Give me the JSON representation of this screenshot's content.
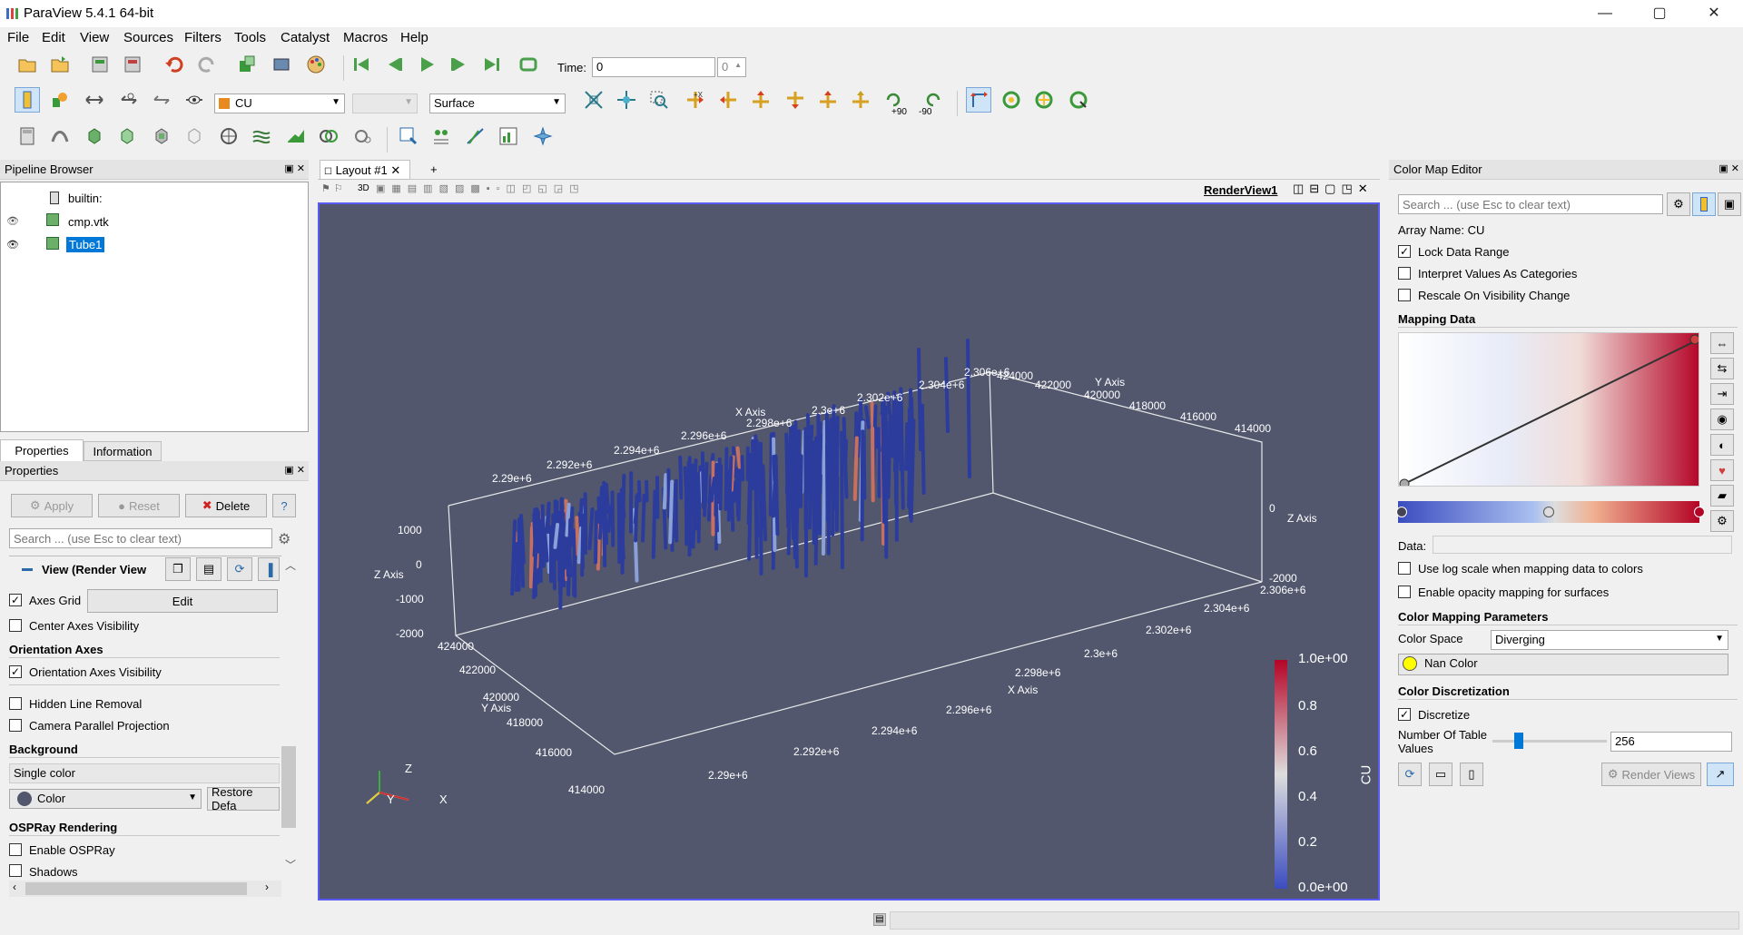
{
  "window": {
    "title": "ParaView 5.4.1 64-bit",
    "minimize": "—",
    "maximize": "▢",
    "close": "✕"
  },
  "menu": [
    "File",
    "Edit",
    "View",
    "Sources",
    "Filters",
    "Tools",
    "Catalyst",
    "Macros",
    "Help"
  ],
  "time": {
    "label": "Time:",
    "value": "0",
    "index": "0"
  },
  "toolbar2": {
    "array": "CU",
    "component": "",
    "representation": "Surface",
    "camera_labels": [
      "+X",
      "-X",
      "+Y",
      "-Y",
      "+Z",
      "-Z",
      "+90",
      "-90"
    ]
  },
  "pipeline": {
    "title": "Pipeline Browser",
    "items": [
      {
        "label": "builtin:"
      },
      {
        "label": "cmp.vtk"
      },
      {
        "label": "Tube1"
      }
    ]
  },
  "tabs": {
    "properties": "Properties",
    "information": "Information"
  },
  "properties": {
    "title": "Properties",
    "apply": "Apply",
    "reset": "Reset",
    "delete": "Delete",
    "help": "?",
    "search_placeholder": "Search ... (use Esc to clear text)",
    "view_section": "View (Render View",
    "axes_grid": "Axes Grid",
    "edit": "Edit",
    "center_axes": "Center Axes Visibility",
    "orientation_header": "Orientation Axes",
    "orientation_visibility": "Orientation Axes Visibility",
    "hidden_line": "Hidden Line Removal",
    "camera_parallel": "Camera Parallel Projection",
    "background_header": "Background",
    "background_mode": "Single color",
    "color": "Color",
    "restore": "Restore Defa",
    "ospray_header": "OSPRay Rendering",
    "enable_ospray": "Enable OSPRay",
    "shadows": "Shadows"
  },
  "layout": {
    "tab": "Layout #1",
    "add": "+",
    "view_name": "RenderView1",
    "mode_3d": "3D"
  },
  "axes": {
    "x_top": [
      "X Axis",
      "2.29e+6",
      "2.292e+6",
      "2.294e+6",
      "2.296e+6",
      "2.298e+6",
      "2.3e+6",
      "2.302e+6",
      "2.304e+6",
      "2.306e+6"
    ],
    "y_top": [
      "Y Axis",
      "424000",
      "422000",
      "420000",
      "418000",
      "416000",
      "414000"
    ],
    "z_left": [
      "Z Axis",
      "1000",
      "0",
      "-1000",
      "-2000"
    ],
    "z_right": [
      "Z Axis",
      "0",
      "-2000"
    ],
    "x_bottom": [
      "X Axis",
      "2.29e+6",
      "2.292e+6",
      "2.294e+6",
      "2.296e+6",
      "2.298e+6",
      "2.3e+6",
      "2.302e+6",
      "2.304e+6",
      "2.306e+6"
    ],
    "y_left": [
      "Y Axis",
      "424000",
      "422000",
      "420000",
      "418000",
      "416000",
      "414000"
    ],
    "orient": [
      "Z",
      "Y",
      "X"
    ]
  },
  "colorbar": {
    "title": "CU",
    "ticks": [
      "1.0e+00",
      "0.8",
      "0.6",
      "0.4",
      "0.2",
      "0.0e+00"
    ],
    "low": "#3b4cc0",
    "mid": "#dddddd",
    "high": "#b40426"
  },
  "cme": {
    "title": "Color Map Editor",
    "search_placeholder": "Search ... (use Esc to clear text)",
    "array_name": "Array Name: CU",
    "lock_range": "Lock Data Range",
    "interpret": "Interpret Values As Categories",
    "rescale": "Rescale On Visibility Change",
    "mapping_header": "Mapping Data",
    "data_label": "Data:",
    "log_scale": "Use log scale when mapping data to colors",
    "opacity": "Enable opacity mapping for surfaces",
    "params_header": "Color Mapping Parameters",
    "color_space_label": "Color Space",
    "color_space": "Diverging",
    "nan_color": "Nan Color",
    "discretization_header": "Color Discretization",
    "discretize": "Discretize",
    "num_values_label": "Number Of Table Values",
    "num_values": "256",
    "render_views": "Render Views",
    "nan_swatch": "#ffff00"
  }
}
